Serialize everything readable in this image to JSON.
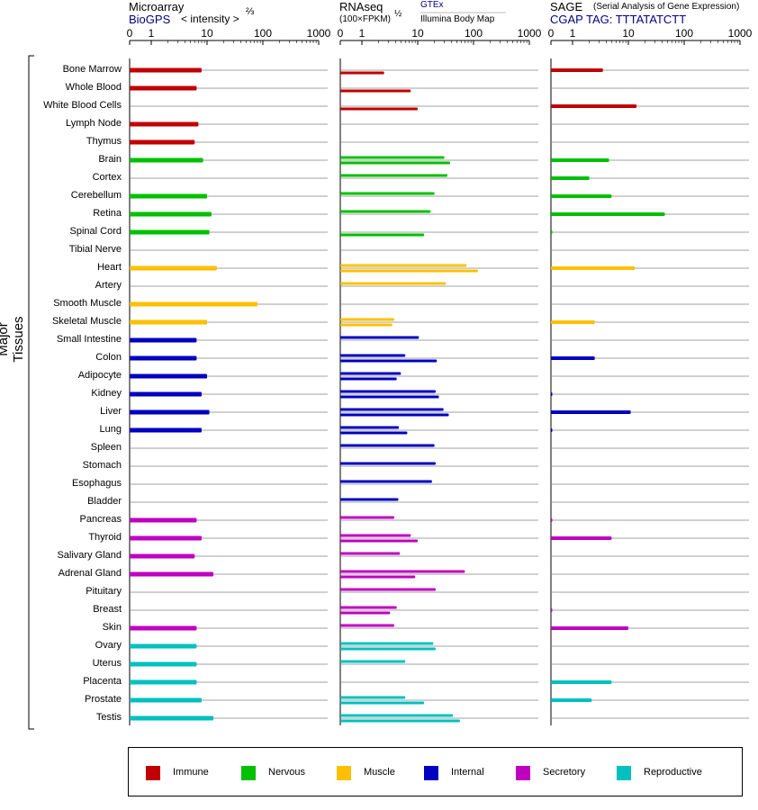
{
  "panels": {
    "microarray": {
      "title": "Microarray",
      "source": "BioGPS",
      "unit": "< intensity >",
      "exponent": "⅔"
    },
    "rnaseq": {
      "title": "RNAseq",
      "unit": "(100×FPKM)",
      "exponent": "½",
      "source_gtex": "GTEx",
      "source_ibm": "Illumina Body Map"
    },
    "sage": {
      "title": "SAGE",
      "subtitle": "(Serial Analysis of Gene Expression)",
      "tag": "CGAP TAG: TTTATATCTT"
    }
  },
  "y_axis_label": "Major Tissues",
  "chart_data": {
    "type": "bar",
    "xscale": "log",
    "xlim": [
      0,
      1000
    ],
    "ticks": [
      "0",
      "1",
      "10",
      "100",
      "1000"
    ],
    "categories": [
      "Bone Marrow",
      "Whole Blood",
      "White Blood Cells",
      "Lymph Node",
      "Thymus",
      "Brain",
      "Cortex",
      "Cerebellum",
      "Retina",
      "Spinal Cord",
      "Tibial Nerve",
      "Heart",
      "Artery",
      "Smooth Muscle",
      "Skeletal Muscle",
      "Small Intestine",
      "Colon",
      "Adipocyte",
      "Kidney",
      "Liver",
      "Lung",
      "Spleen",
      "Stomach",
      "Esophagus",
      "Bladder",
      "Pancreas",
      "Thyroid",
      "Salivary Gland",
      "Adrenal Gland",
      "Pituitary",
      "Breast",
      "Skin",
      "Ovary",
      "Uterus",
      "Placenta",
      "Prostate",
      "Testis"
    ],
    "groups": [
      "Immune",
      "Immune",
      "Immune",
      "Immune",
      "Immune",
      "Nervous",
      "Nervous",
      "Nervous",
      "Nervous",
      "Nervous",
      "Nervous",
      "Muscle",
      "Muscle",
      "Muscle",
      "Muscle",
      "Internal",
      "Internal",
      "Internal",
      "Internal",
      "Internal",
      "Internal",
      "Internal",
      "Internal",
      "Internal",
      "Internal",
      "Secretory",
      "Secretory",
      "Secretory",
      "Secretory",
      "Secretory",
      "Secretory",
      "Secretory",
      "Reproductive",
      "Reproductive",
      "Reproductive",
      "Reproductive",
      "Reproductive"
    ],
    "group_colors": {
      "Immune": "#c00000",
      "Nervous": "#00c000",
      "Muscle": "#ffc000",
      "Internal": "#0000c0",
      "Secretory": "#c000c0",
      "Reproductive": "#00c0c0"
    },
    "series": [
      {
        "name": "Microarray",
        "values": [
          8,
          6.5,
          null,
          7,
          6,
          8.5,
          null,
          10,
          12,
          11,
          null,
          15,
          null,
          80,
          10,
          6.5,
          6.5,
          10,
          8,
          11,
          8,
          null,
          null,
          null,
          null,
          6.5,
          8,
          6,
          13,
          null,
          null,
          6.5,
          6.5,
          6.5,
          6.5,
          8,
          13
        ]
      },
      {
        "name": "GTEx",
        "values": [
          null,
          null,
          null,
          null,
          null,
          30,
          34,
          20,
          17,
          null,
          null,
          75,
          32,
          null,
          3.8,
          10.5,
          6,
          5,
          21,
          29,
          4.6,
          20,
          21,
          18,
          4.5,
          3.8,
          7.5,
          4.8,
          70,
          21,
          4.2,
          3.8,
          19,
          6,
          null,
          6,
          43
        ]
      },
      {
        "name": "Illumina Body Map",
        "values": [
          2.5,
          7.5,
          10,
          null,
          null,
          38,
          null,
          null,
          null,
          13,
          null,
          120,
          null,
          null,
          3.5,
          null,
          22,
          4.2,
          24,
          36,
          6.5,
          null,
          null,
          null,
          null,
          null,
          10,
          null,
          9,
          null,
          3.2,
          null,
          21,
          null,
          null,
          13,
          57
        ]
      },
      {
        "name": "SAGE",
        "values": [
          3.5,
          null,
          14,
          null,
          null,
          4.5,
          2,
          5,
          45,
          0.02,
          null,
          13,
          null,
          null,
          2.5,
          null,
          2.5,
          null,
          0.05,
          11,
          0.05,
          null,
          null,
          null,
          null,
          0.05,
          5,
          null,
          null,
          null,
          0.05,
          10,
          null,
          null,
          5,
          2.2,
          null
        ]
      }
    ]
  },
  "legend": [
    {
      "label": "Immune",
      "color": "#c00000"
    },
    {
      "label": "Nervous",
      "color": "#00c000"
    },
    {
      "label": "Muscle",
      "color": "#ffc000"
    },
    {
      "label": "Internal",
      "color": "#0000c0"
    },
    {
      "label": "Secretory",
      "color": "#c000c0"
    },
    {
      "label": "Reproductive",
      "color": "#00c0c0"
    }
  ]
}
